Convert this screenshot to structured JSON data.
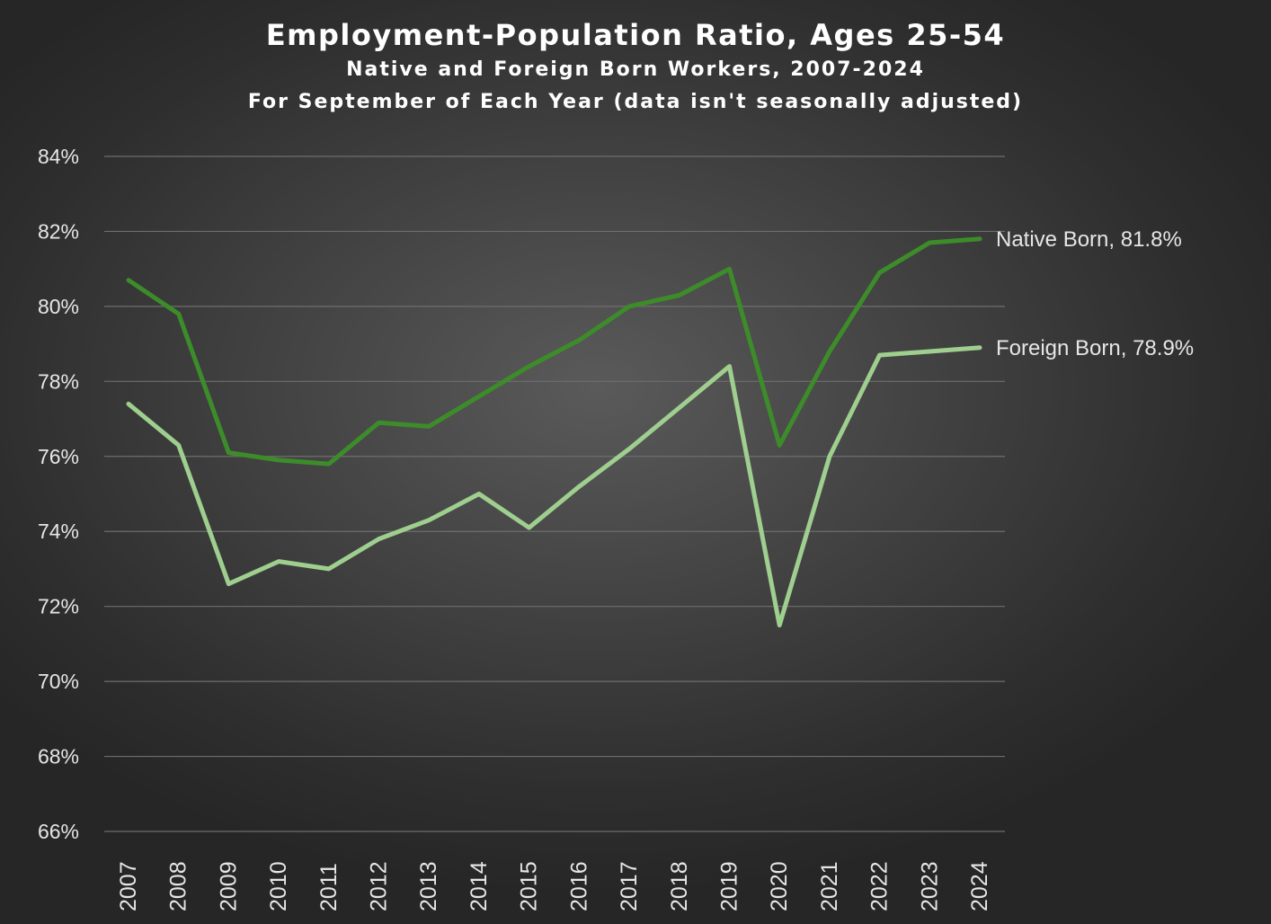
{
  "colors": {
    "native": "#3d8c2a",
    "foreign": "#9fcf8f",
    "grid": "#6e6e6e",
    "text": "#e6e6e6",
    "title": "#ffffff"
  },
  "chart_data": {
    "type": "line",
    "title": "Employment-Population Ratio, Ages 25-54",
    "subtitle_1": "Native and Foreign Born Workers, 2007-2024",
    "subtitle_2": "For September of Each Year (data isn't seasonally adjusted)",
    "xlabel": "",
    "ylabel": "",
    "ylim": [
      66,
      84
    ],
    "ytick_step": 2,
    "y_format": "percent",
    "grid": true,
    "categories": [
      "2007",
      "2008",
      "2009",
      "2010",
      "2011",
      "2012",
      "2013",
      "2014",
      "2015",
      "2016",
      "2017",
      "2018",
      "2019",
      "2020",
      "2021",
      "2022",
      "2023",
      "2024"
    ],
    "series": [
      {
        "name": "Native Born",
        "color_key": "native",
        "end_label": "Native Born, 81.8%",
        "values": [
          80.7,
          79.8,
          76.1,
          75.9,
          75.8,
          76.9,
          76.8,
          77.6,
          78.4,
          79.1,
          80.0,
          80.3,
          81.0,
          76.3,
          78.8,
          80.9,
          81.7,
          81.8
        ]
      },
      {
        "name": "Foreign Born",
        "color_key": "foreign",
        "end_label": "Foreign Born, 78.9%",
        "values": [
          77.4,
          76.3,
          72.6,
          73.2,
          73.0,
          73.8,
          74.3,
          75.0,
          74.1,
          75.2,
          76.2,
          77.3,
          78.4,
          71.5,
          76.0,
          78.7,
          78.8,
          78.9
        ]
      }
    ]
  }
}
